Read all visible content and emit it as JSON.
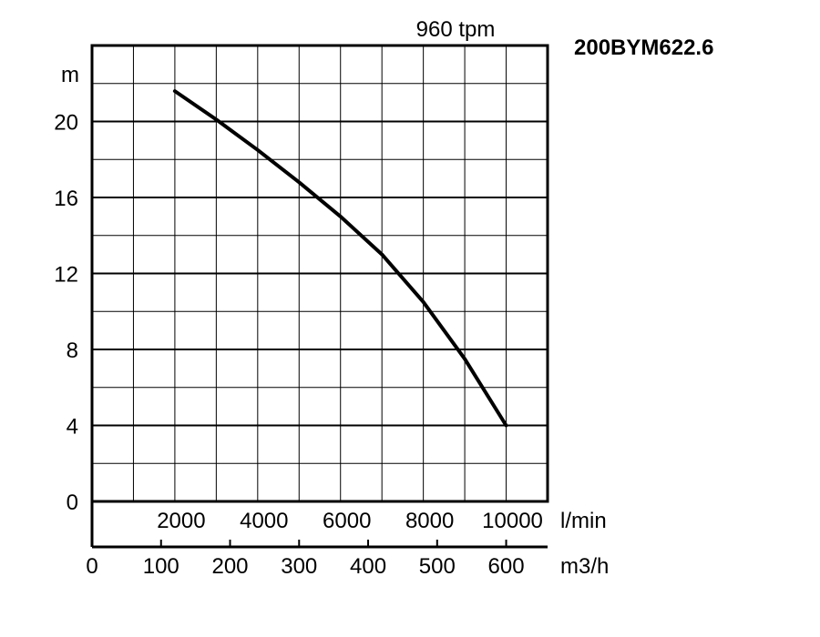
{
  "chart_data": {
    "type": "line",
    "model": "200BYM622.6",
    "speed_label": "960 tpm",
    "ylabel": "m",
    "xlabel_flow_lmin": "l/min",
    "xlabel_flow_m3h": "m3/h",
    "ylim": [
      0,
      24
    ],
    "xlim": [
      0,
      11000
    ],
    "y_ticks": [
      "0",
      "4",
      "8",
      "12",
      "16",
      "20"
    ],
    "y_tick_values": [
      0,
      4,
      8,
      12,
      16,
      20
    ],
    "x_ticks_lmin": [
      "2000",
      "4000",
      "6000",
      "8000",
      "10000"
    ],
    "x_tick_values_lmin": [
      2000,
      4000,
      6000,
      8000,
      10000
    ],
    "x_ticks_m3h": [
      "0",
      "100",
      "200",
      "300",
      "400",
      "500",
      "600"
    ],
    "x_tick_values_m3h": [
      0,
      100,
      200,
      300,
      400,
      500,
      600
    ],
    "grid": true,
    "series": [
      {
        "color": "#000000",
        "x": [
          2000,
          3000,
          4000,
          5000,
          6000,
          7000,
          8000,
          9000,
          10000
        ],
        "y": [
          21.6,
          20.1,
          18.5,
          16.8,
          15.0,
          13.0,
          10.5,
          7.5,
          4.0
        ]
      }
    ]
  }
}
